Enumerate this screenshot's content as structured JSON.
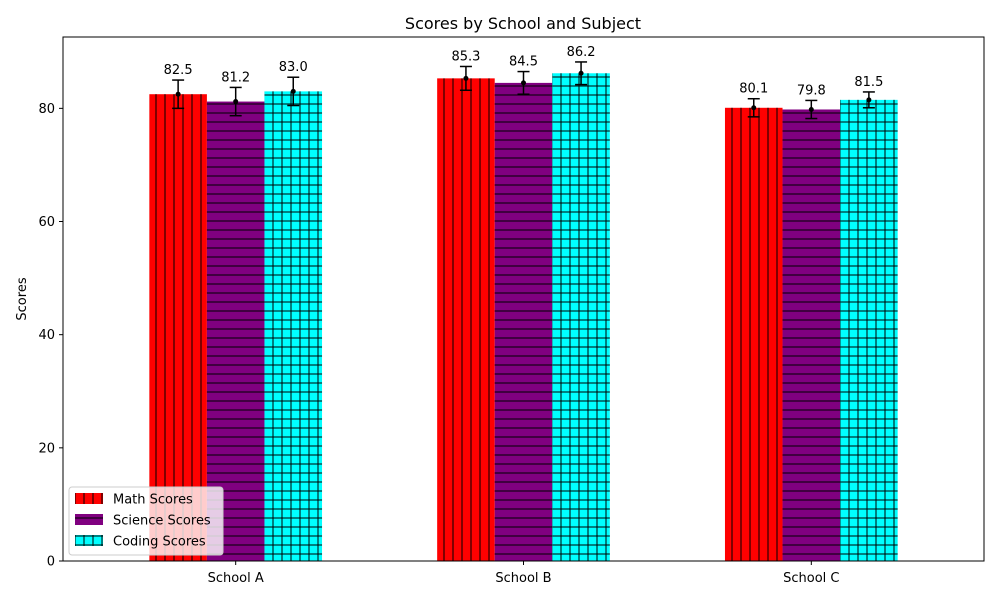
{
  "chart_data": {
    "type": "bar",
    "title": "Scores by School and Subject",
    "xlabel": "",
    "ylabel": "Scores",
    "categories": [
      "School A",
      "School B",
      "School C"
    ],
    "ylim": [
      0,
      92.61
    ],
    "yticks": [
      0,
      20,
      40,
      60,
      80
    ],
    "grid": false,
    "legend_position": "lower-left",
    "series": [
      {
        "name": "Math Scores",
        "values": [
          82.5,
          85.3,
          80.1
        ],
        "errors": [
          2.5,
          2.1,
          1.6
        ],
        "color": "#ff0000",
        "hatch": "vertical"
      },
      {
        "name": "Science Scores",
        "values": [
          81.2,
          84.5,
          79.8
        ],
        "errors": [
          2.5,
          2.0,
          1.6
        ],
        "color": "#800080",
        "hatch": "horizontal"
      },
      {
        "name": "Coding Scores",
        "values": [
          83.0,
          86.2,
          81.5
        ],
        "errors": [
          2.5,
          2.0,
          1.4
        ],
        "color": "#00ffff",
        "hatch": "grid"
      }
    ]
  }
}
